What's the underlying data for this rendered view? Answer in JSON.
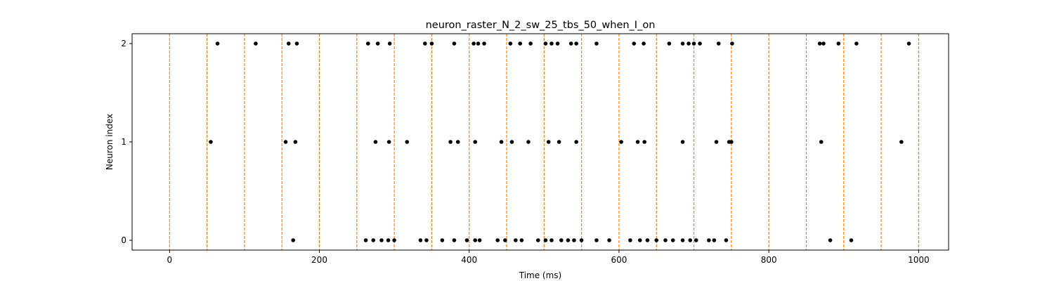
{
  "chart_data": {
    "type": "scatter",
    "title": "neuron_raster_N_2_sw_25_tbs_50_when_I_on",
    "xlabel": "Time (ms)",
    "ylabel": "Neuron index",
    "xlim": [
      -50,
      1040
    ],
    "ylim": [
      -0.1,
      2.1
    ],
    "x_ticks": [
      0,
      200,
      400,
      600,
      800,
      1000
    ],
    "x_tick_labels": [
      "0",
      "200",
      "400",
      "600",
      "800",
      "1000"
    ],
    "y_ticks": [
      0,
      1,
      2
    ],
    "y_tick_labels": [
      "0",
      "1",
      "2"
    ],
    "grid": false,
    "marker_color": "#000000",
    "vline_color": "#ff7f0e",
    "vlines": [
      0,
      50,
      100,
      150,
      200,
      250,
      300,
      350,
      400,
      450,
      500,
      550,
      600,
      650,
      700,
      750,
      800,
      850,
      900,
      950,
      1000
    ],
    "series": [
      {
        "neuron": 0,
        "spikes": [
          165,
          262,
          272,
          283,
          292,
          300,
          335,
          343,
          364,
          380,
          397,
          408,
          414,
          438,
          448,
          462,
          470,
          492,
          502,
          510,
          523,
          532,
          540,
          550,
          570,
          587,
          615,
          628,
          638,
          650,
          662,
          672,
          685,
          695,
          703,
          720,
          727,
          743,
          882,
          910
        ]
      },
      {
        "neuron": 1,
        "spikes": [
          55,
          155,
          168,
          275,
          293,
          317,
          375,
          385,
          408,
          443,
          457,
          479,
          506,
          520,
          543,
          603,
          625,
          634,
          685,
          730,
          747,
          750,
          870,
          977
        ]
      },
      {
        "neuron": 2,
        "spikes": [
          64,
          115,
          159,
          170,
          265,
          278,
          294,
          341,
          350,
          380,
          406,
          412,
          420,
          455,
          468,
          482,
          502,
          510,
          518,
          536,
          543,
          570,
          620,
          633,
          667,
          685,
          693,
          700,
          708,
          733,
          751,
          868,
          873,
          893,
          917,
          987
        ]
      }
    ]
  }
}
